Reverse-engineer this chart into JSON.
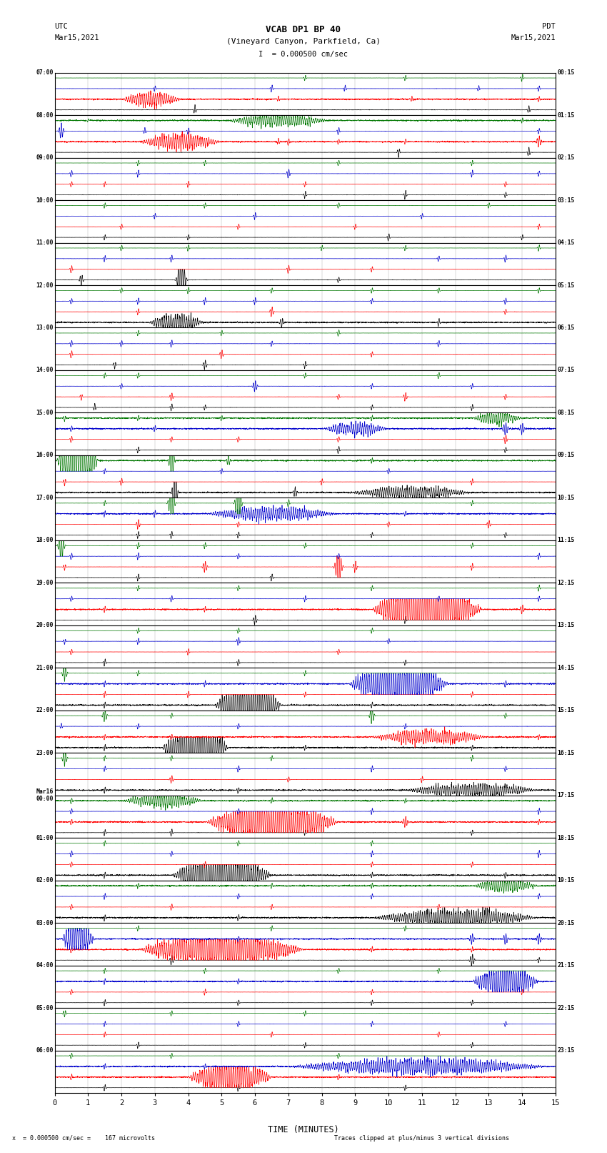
{
  "title_line1": "VCAB DP1 BP 40",
  "title_line2": "(Vineyard Canyon, Parkfield, Ca)",
  "scale_label": "I  = 0.000500 cm/sec",
  "utc_label": "UTC",
  "utc_date": "Mar15,2021",
  "pdt_label": "PDT",
  "pdt_date": "Mar15,2021",
  "xlabel": "TIME (MINUTES)",
  "bottom_left": "x  = 0.000500 cm/sec =    167 microvolts",
  "bottom_right": "Traces clipped at plus/minus 3 vertical divisions",
  "left_times": [
    "07:00",
    "08:00",
    "09:00",
    "10:00",
    "11:00",
    "12:00",
    "13:00",
    "14:00",
    "15:00",
    "16:00",
    "17:00",
    "18:00",
    "19:00",
    "20:00",
    "21:00",
    "22:00",
    "23:00",
    "Mar16\n00:00",
    "01:00",
    "02:00",
    "03:00",
    "04:00",
    "05:00",
    "06:00"
  ],
  "right_times": [
    "00:15",
    "01:15",
    "02:15",
    "03:15",
    "04:15",
    "05:15",
    "06:15",
    "07:15",
    "08:15",
    "09:15",
    "10:15",
    "11:15",
    "12:15",
    "13:15",
    "14:15",
    "15:15",
    "16:15",
    "17:15",
    "18:15",
    "19:15",
    "20:15",
    "21:15",
    "22:15",
    "23:15"
  ],
  "n_rows": 24,
  "x_min": 0,
  "x_max": 15,
  "x_ticks": [
    0,
    1,
    2,
    3,
    4,
    5,
    6,
    7,
    8,
    9,
    10,
    11,
    12,
    13,
    14,
    15
  ],
  "bg_color": "#ffffff",
  "grid_color": "#aaaaaa",
  "trace_colors": [
    "#000000",
    "#ff0000",
    "#0000cc",
    "#007700"
  ],
  "fig_width": 8.5,
  "fig_height": 16.13
}
